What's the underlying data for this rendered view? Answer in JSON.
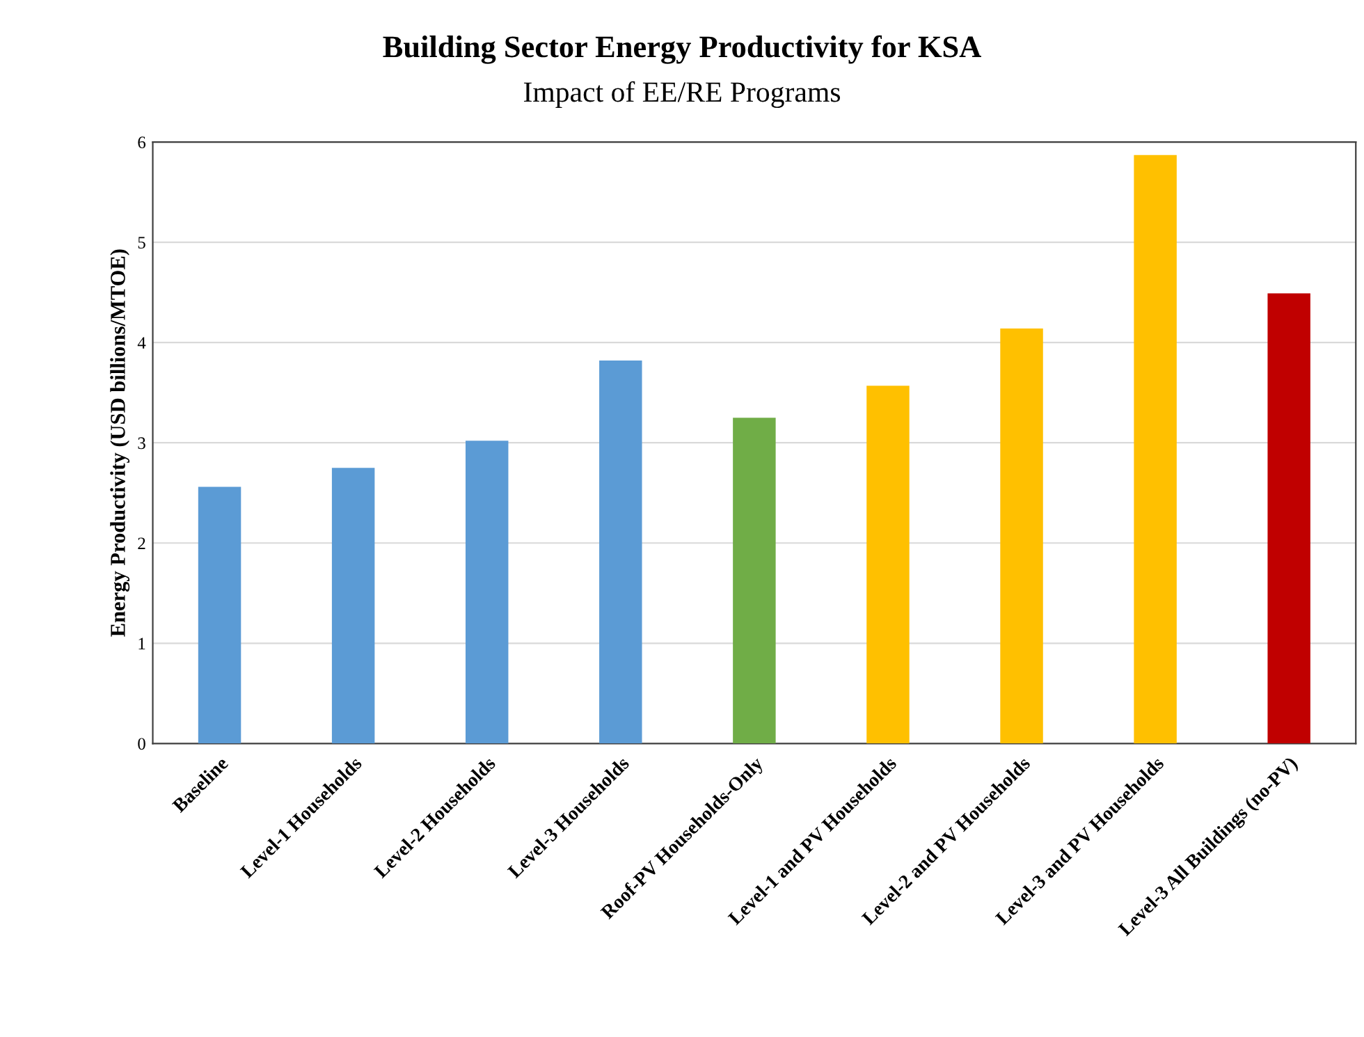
{
  "chart_data": {
    "type": "bar",
    "title": "Building Sector Energy Productivity for KSA",
    "subtitle": "Impact of EE/RE Programs",
    "ylabel": "Energy Productivity (USD billions/MTOE)",
    "categories": [
      "Baseline",
      "Level-1 Households",
      "Level-2 Households",
      "Level-3 Households",
      "Roof-PV Households-Only",
      "Level-1 and PV Households",
      "Level-2 and PV Households",
      "Level-3 and PV Households",
      "Level-3 All Buildings (no-PV)"
    ],
    "values": [
      2.56,
      2.75,
      3.02,
      3.82,
      3.25,
      3.57,
      4.14,
      5.87,
      4.49
    ],
    "colors": [
      "#5b9bd5",
      "#5b9bd5",
      "#5b9bd5",
      "#5b9bd5",
      "#70ad47",
      "#ffc000",
      "#ffc000",
      "#ffc000",
      "#c00000"
    ],
    "ylim": [
      0,
      6
    ],
    "yticks": [
      0,
      1,
      2,
      3,
      4,
      5,
      6
    ],
    "grid": "y",
    "legend": false
  }
}
